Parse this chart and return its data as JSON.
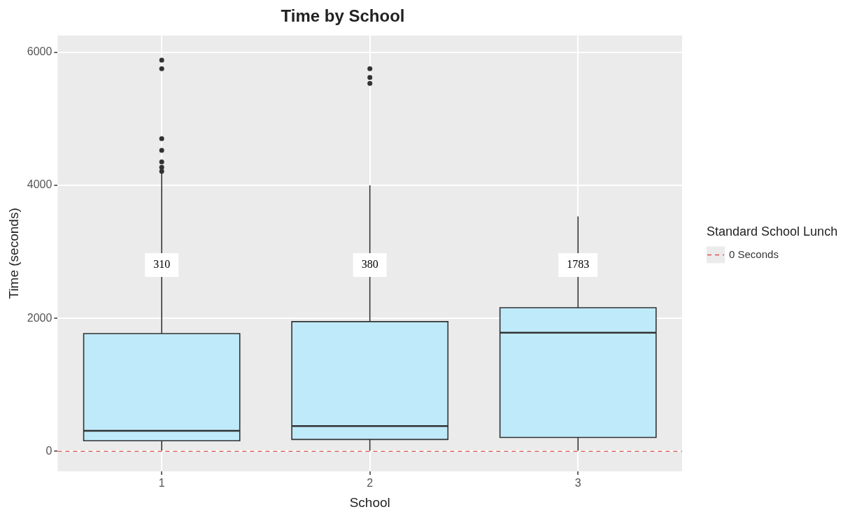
{
  "chart_data": {
    "type": "box",
    "title": "Time by School",
    "xlabel": "School",
    "ylabel": "Time (seconds)",
    "legend_title": "Standard School Lunch",
    "categories": [
      "1",
      "2",
      "3"
    ],
    "color": "#bfeafa",
    "boxes": [
      {
        "low": 10,
        "q1": 160,
        "median": 310,
        "q3": 1770,
        "high": 4180,
        "outliers": [
          5880,
          5750,
          4700,
          4525,
          4350,
          4270,
          4210
        ]
      },
      {
        "low": 10,
        "q1": 180,
        "median": 380,
        "q3": 1950,
        "high": 4000,
        "outliers": [
          5750,
          5620,
          5530
        ]
      },
      {
        "low": 10,
        "q1": 210,
        "median": 1783,
        "q3": 2160,
        "high": 3530
      }
    ],
    "annotations": [
      {
        "text": "310",
        "x": "1",
        "y": 2800
      },
      {
        "text": "380",
        "x": "2",
        "y": 2800
      },
      {
        "text": "1783",
        "x": "3",
        "y": 2800
      }
    ],
    "ref_lines": [
      {
        "axis": "y",
        "value": 0,
        "label": "0 Seconds",
        "color": "#d9534f",
        "line_style": "dashed"
      }
    ],
    "ylim": [
      -300,
      6250
    ],
    "yticks": [
      0,
      2000,
      4000,
      6000
    ],
    "grid": true,
    "legend": "right"
  }
}
